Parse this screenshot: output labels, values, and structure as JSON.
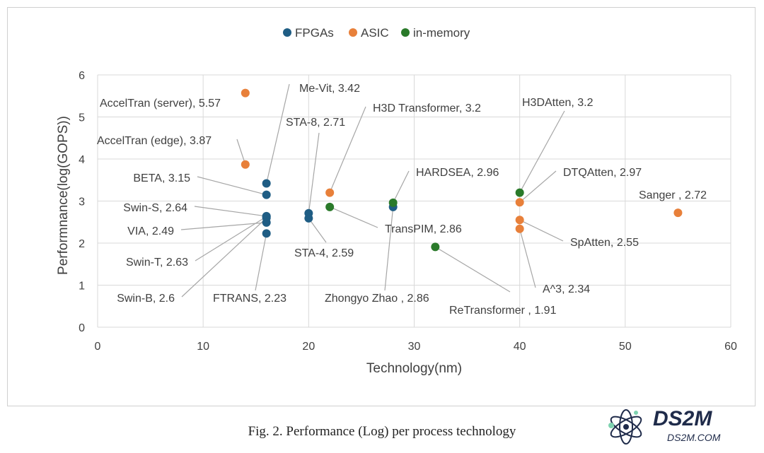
{
  "chart_data": {
    "type": "scatter",
    "title": "",
    "xlabel": "Technology(nm)",
    "ylabel": "Performnance(log(GOPS))",
    "xlim": [
      0,
      60
    ],
    "ylim": [
      0,
      6
    ],
    "xticks": [
      0,
      10,
      20,
      30,
      40,
      50,
      60
    ],
    "yticks": [
      0,
      1,
      2,
      3,
      4,
      5,
      6
    ],
    "grid": "horizontal",
    "legend_position": "top-center",
    "series": [
      {
        "name": "FPGAs",
        "color": "#1f5d84",
        "points": [
          {
            "x": 16,
            "y": 3.42,
            "label": "Me-Vit, 3.42"
          },
          {
            "x": 16,
            "y": 3.15,
            "label": "BETA, 3.15"
          },
          {
            "x": 16,
            "y": 2.64,
            "label": "Swin-S, 2.64"
          },
          {
            "x": 16,
            "y": 2.63,
            "label": "Swin-T, 2.63"
          },
          {
            "x": 16,
            "y": 2.6,
            "label": "Swin-B, 2.6"
          },
          {
            "x": 16,
            "y": 2.49,
            "label": "VIA, 2.49"
          },
          {
            "x": 16,
            "y": 2.23,
            "label": "FTRANS, 2.23"
          },
          {
            "x": 20,
            "y": 2.71,
            "label": "STA-8, 2.71"
          },
          {
            "x": 20,
            "y": 2.59,
            "label": "STA-4, 2.59"
          },
          {
            "x": 28,
            "y": 2.86,
            "label": "Zhongyo Zhao , 2.86"
          }
        ]
      },
      {
        "name": "ASIC",
        "color": "#e8803a",
        "points": [
          {
            "x": 14,
            "y": 5.57,
            "label": "AccelTran (server), 5.57"
          },
          {
            "x": 14,
            "y": 3.87,
            "label": "AccelTran (edge), 3.87"
          },
          {
            "x": 22,
            "y": 3.2,
            "label": "H3D Transformer, 3.2"
          },
          {
            "x": 40,
            "y": 2.97,
            "label": "DTQAtten, 2.97"
          },
          {
            "x": 40,
            "y": 2.55,
            "label": "SpAtten, 2.55"
          },
          {
            "x": 40,
            "y": 2.34,
            "label": "A^3, 2.34"
          },
          {
            "x": 55,
            "y": 2.72,
            "label": "Sanger , 2.72"
          }
        ]
      },
      {
        "name": "in-memory",
        "color": "#2a7a2a",
        "points": [
          {
            "x": 22,
            "y": 2.86,
            "label": "TransPIM, 2.86"
          },
          {
            "x": 28,
            "y": 2.96,
            "label": "HARDSEA, 2.96"
          },
          {
            "x": 32,
            "y": 1.91,
            "label": "ReTransformer , 1.91"
          },
          {
            "x": 40,
            "y": 3.2,
            "label": "H3DAtten, 3.2"
          }
        ]
      }
    ]
  },
  "caption": "Fig. 2.  Performance (Log) per process technology",
  "watermark": {
    "main": "DS2M",
    "sub": "DS2M.COM"
  }
}
